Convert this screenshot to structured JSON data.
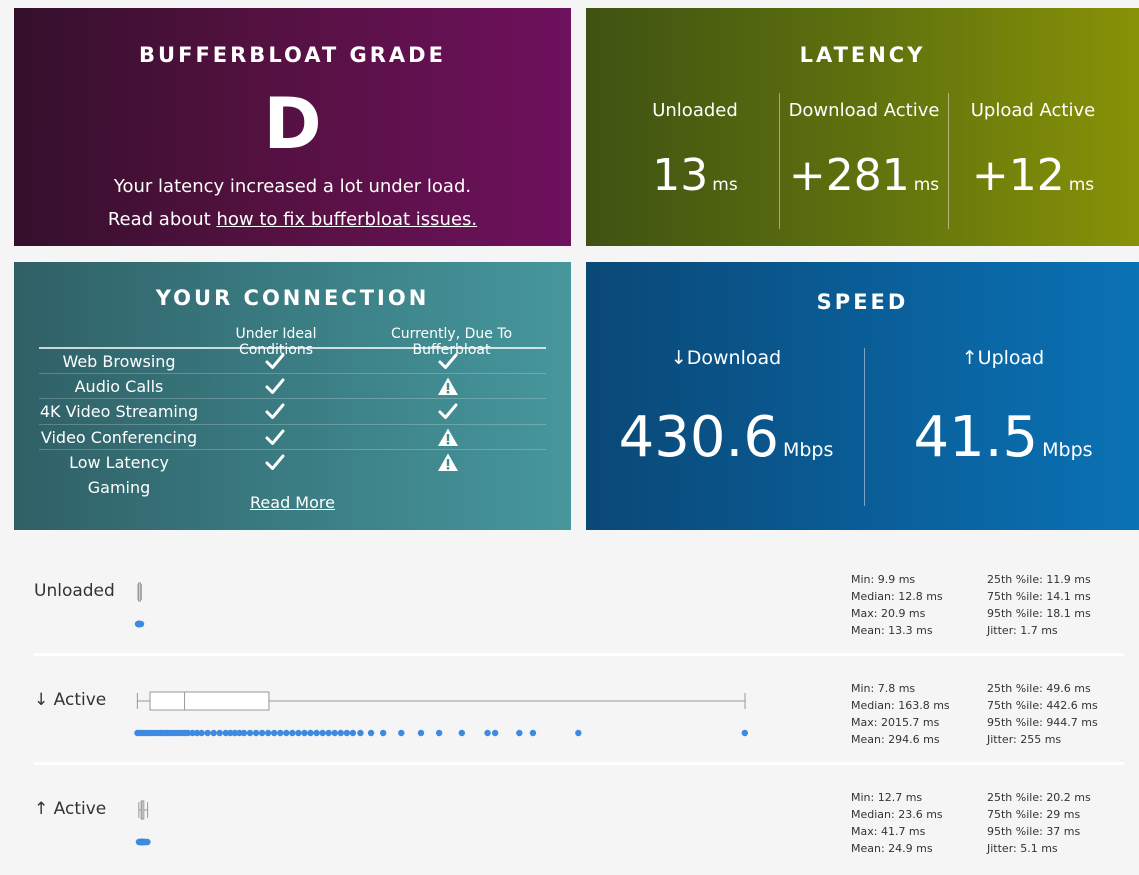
{
  "grade": {
    "title": "BUFFERBLOAT GRADE",
    "letter": "D",
    "description": "Your latency increased a lot under load.",
    "link_prefix": "Read about ",
    "link_text": "how to fix bufferbloat issues."
  },
  "latency": {
    "title": "LATENCY",
    "columns": [
      {
        "label": "Unloaded",
        "value": "13",
        "unit": "ms"
      },
      {
        "label": "Download Active",
        "value": "+281",
        "unit": "ms"
      },
      {
        "label": "Upload Active",
        "value": "+12",
        "unit": "ms"
      }
    ]
  },
  "connection": {
    "title": "YOUR CONNECTION",
    "header_ideal": "Under Ideal Conditions",
    "header_current": "Currently, Due To Bufferbloat",
    "rows": [
      {
        "name": "Web Browsing",
        "ideal": "check",
        "current": "check"
      },
      {
        "name": "Audio Calls",
        "ideal": "check",
        "current": "warning"
      },
      {
        "name": "4K Video Streaming",
        "ideal": "check",
        "current": "check"
      },
      {
        "name": "Video Conferencing",
        "ideal": "check",
        "current": "warning"
      },
      {
        "name": "Low Latency Gaming",
        "ideal": "check",
        "current": "warning"
      }
    ],
    "read_more": "Read More"
  },
  "speed": {
    "title": "SPEED",
    "download": {
      "label": "↓Download",
      "value": "430.6",
      "unit": "Mbps"
    },
    "upload": {
      "label": "↑Upload",
      "value": "41.5",
      "unit": "Mbps"
    }
  },
  "stats": [
    {
      "label": "Unloaded",
      "min": "Min: 9.9 ms",
      "median": "Median: 12.8 ms",
      "max": "Max: 20.9 ms",
      "mean": "Mean: 13.3 ms",
      "p25": "25th %ile: 11.9 ms",
      "p75": "75th %ile: 14.1 ms",
      "p95": "95th %ile: 18.1 ms",
      "jitter": "Jitter: 1.7 ms",
      "box": {
        "min": 9.9,
        "q1": 11.9,
        "median": 12.8,
        "q3": 14.1,
        "max": 20.9
      },
      "points": [
        10,
        11,
        12,
        12.5,
        13,
        13.5,
        14,
        15,
        17,
        20
      ]
    },
    {
      "label": "↓ Active",
      "min": "Min: 7.8 ms",
      "median": "Median: 163.8 ms",
      "max": "Max: 2015.7 ms",
      "mean": "Mean: 294.6 ms",
      "p25": "25th %ile: 49.6 ms",
      "p75": "75th %ile: 442.6 ms",
      "p95": "95th %ile: 944.7 ms",
      "jitter": "Jitter: 255 ms",
      "box": {
        "min": 7.8,
        "q1": 49.6,
        "median": 163.8,
        "q3": 442.6,
        "max": 2015.7
      },
      "points": [
        8,
        15,
        25,
        35,
        45,
        55,
        65,
        75,
        85,
        95,
        105,
        115,
        125,
        135,
        145,
        155,
        165,
        175,
        190,
        205,
        220,
        240,
        260,
        280,
        300,
        315,
        330,
        345,
        360,
        380,
        400,
        420,
        440,
        460,
        480,
        500,
        520,
        540,
        560,
        580,
        600,
        620,
        640,
        660,
        680,
        700,
        720,
        745,
        780,
        820,
        880,
        945,
        1005,
        1080,
        1165,
        1190,
        1270,
        1315,
        1465,
        2015
      ]
    },
    {
      "label": "↑ Active",
      "min": "Min: 12.7 ms",
      "median": "Median: 23.6 ms",
      "max": "Max: 41.7 ms",
      "mean": "Mean: 24.9 ms",
      "p25": "25th %ile: 20.2 ms",
      "p75": "75th %ile: 29 ms",
      "p95": "95th %ile: 37 ms",
      "jitter": "Jitter: 5.1 ms",
      "box": {
        "min": 12.7,
        "q1": 20.2,
        "median": 23.6,
        "q3": 29,
        "max": 41.7
      },
      "points": [
        13,
        16,
        18,
        20,
        21,
        22,
        23,
        24,
        25,
        26,
        27,
        29,
        31,
        34,
        37,
        41
      ]
    }
  ]
}
